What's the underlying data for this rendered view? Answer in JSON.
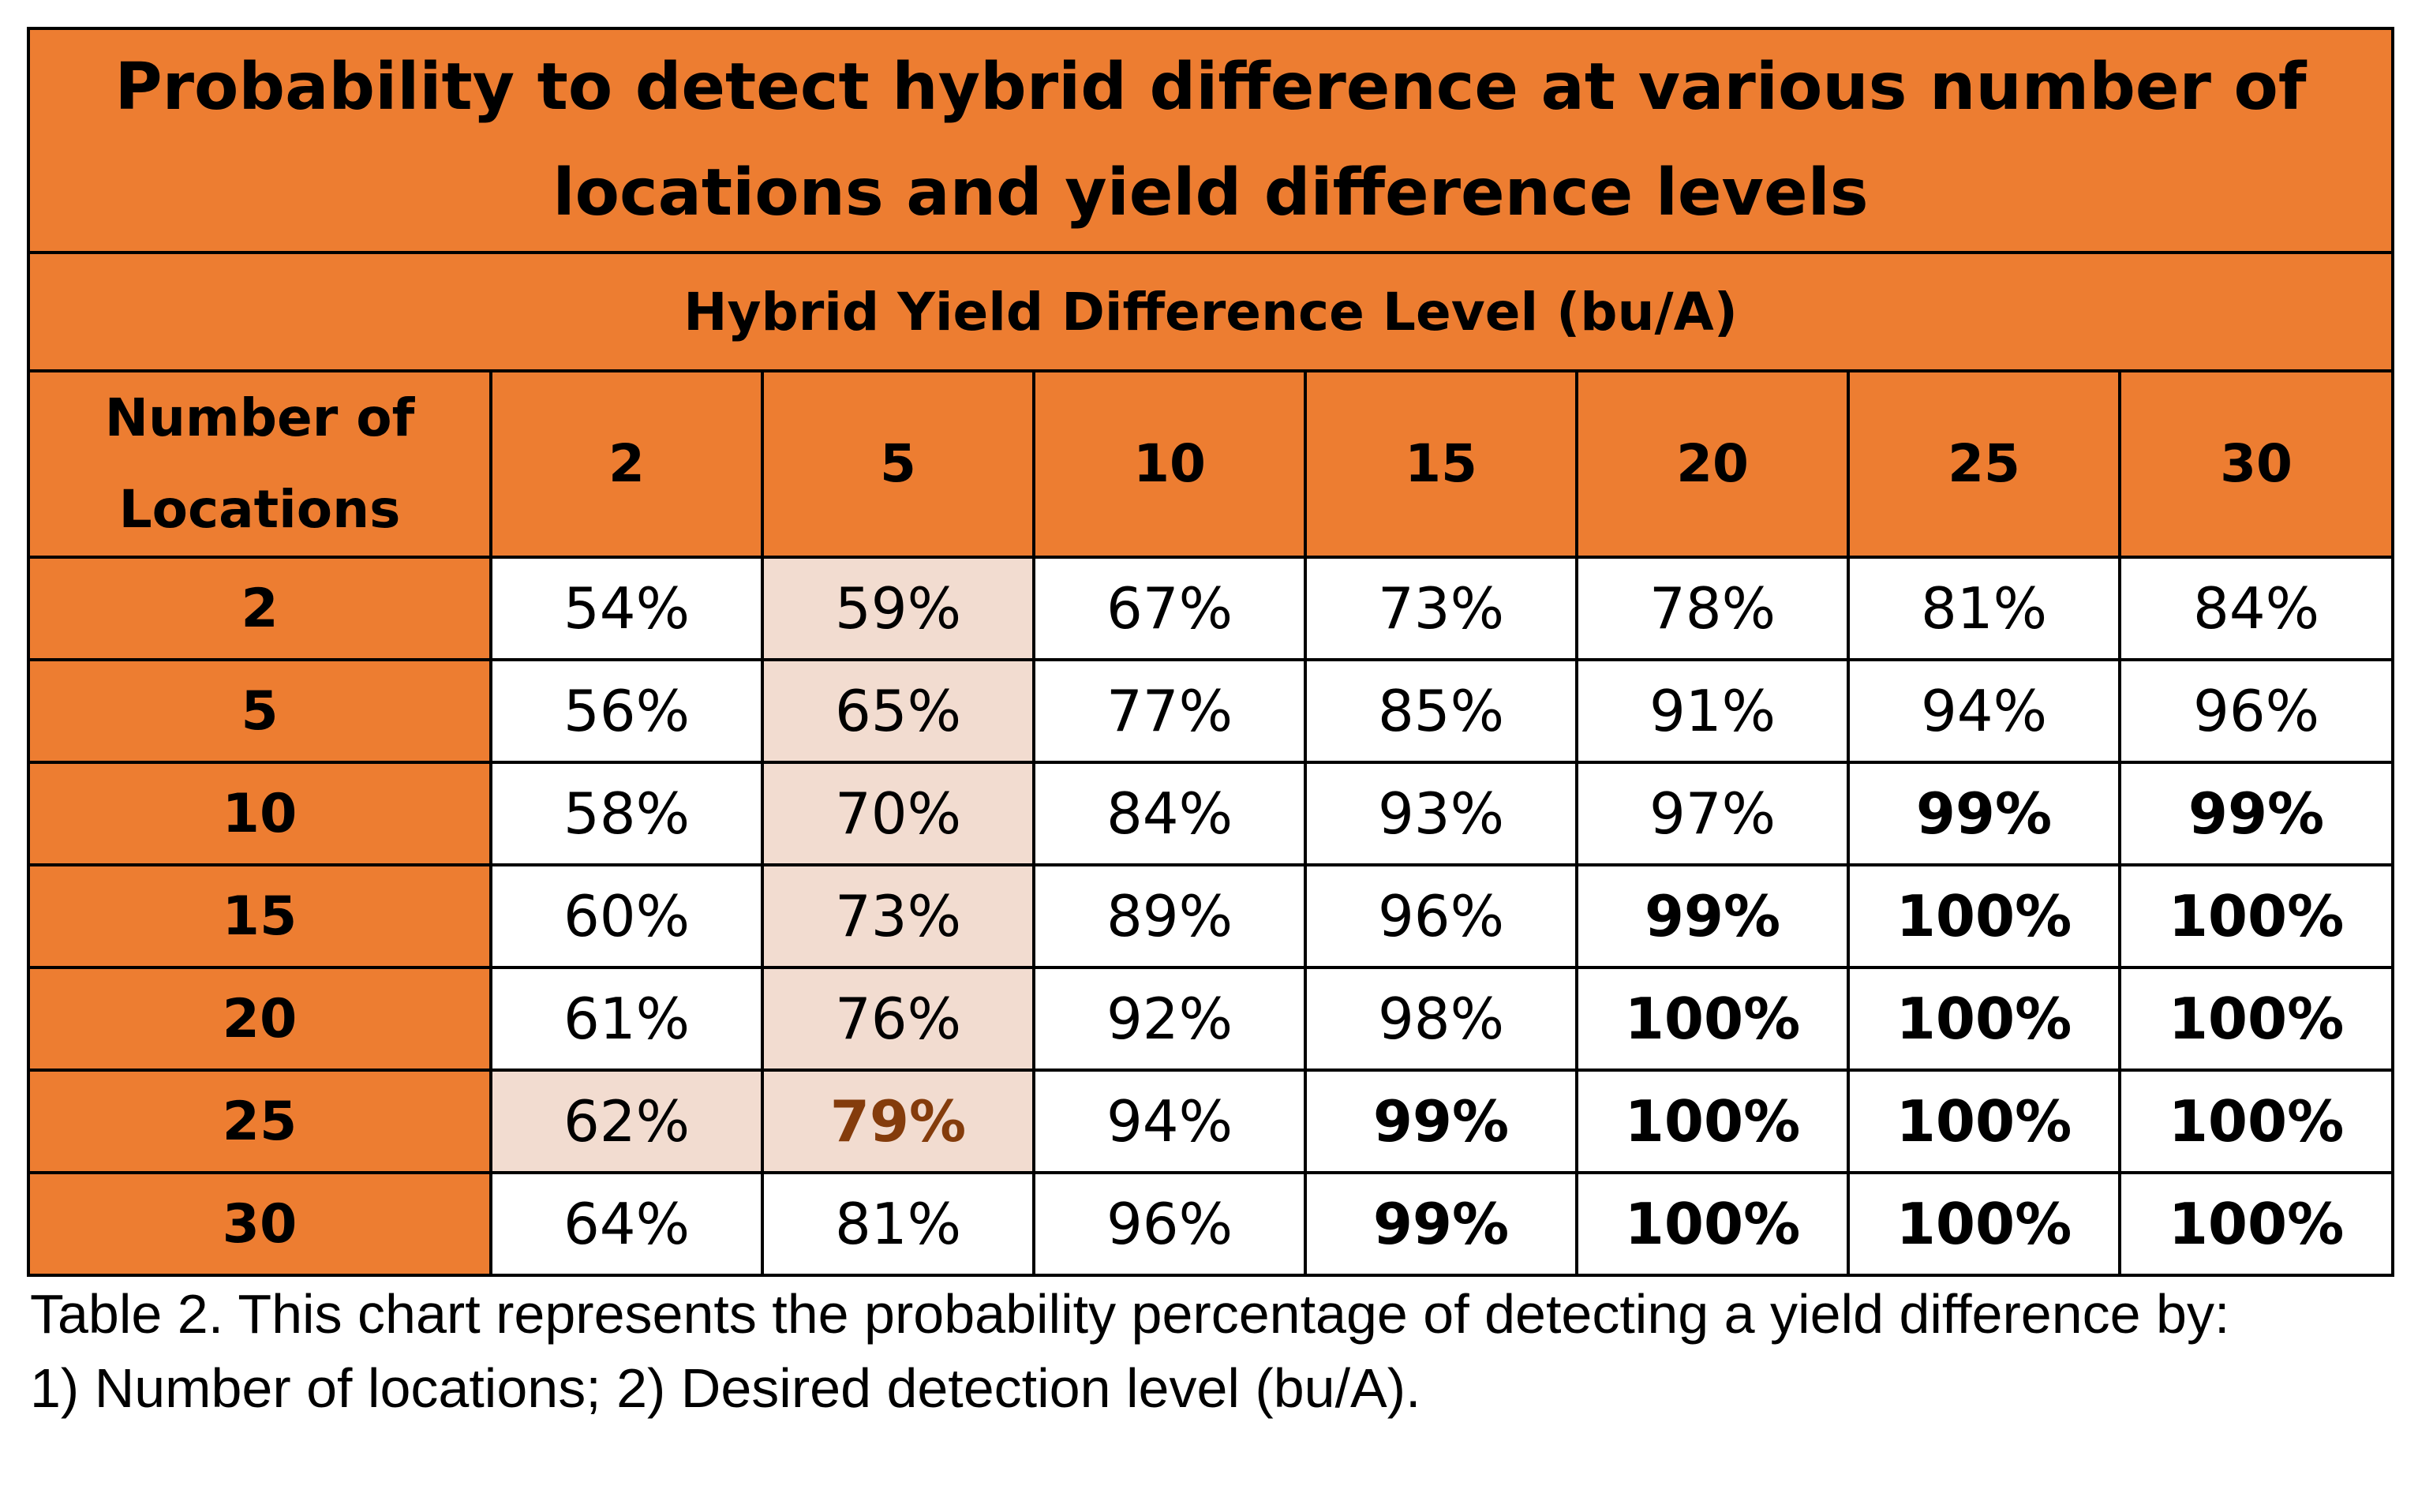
{
  "table": {
    "title": "Probability to detect hybrid difference at various number of locations and yield difference levels",
    "subtitle": "Hybrid Yield Difference Level (bu/A)",
    "row_header": "Number of Locations",
    "columns": [
      "2",
      "5",
      "10",
      "15",
      "20",
      "25",
      "30"
    ],
    "rows": [
      {
        "label": "2",
        "values": [
          "54%",
          "59%",
          "67%",
          "73%",
          "78%",
          "81%",
          "84%"
        ]
      },
      {
        "label": "5",
        "values": [
          "56%",
          "65%",
          "77%",
          "85%",
          "91%",
          "94%",
          "96%"
        ]
      },
      {
        "label": "10",
        "values": [
          "58%",
          "70%",
          "84%",
          "93%",
          "97%",
          "99%",
          "99%"
        ]
      },
      {
        "label": "15",
        "values": [
          "60%",
          "73%",
          "89%",
          "96%",
          "99%",
          "100%",
          "100%"
        ]
      },
      {
        "label": "20",
        "values": [
          "61%",
          "76%",
          "92%",
          "98%",
          "100%",
          "100%",
          "100%"
        ]
      },
      {
        "label": "25",
        "values": [
          "62%",
          "79%",
          "94%",
          "99%",
          "100%",
          "100%",
          "100%"
        ]
      },
      {
        "label": "30",
        "values": [
          "64%",
          "81%",
          "96%",
          "99%",
          "100%",
          "100%",
          "100%"
        ]
      }
    ]
  },
  "caption_lines": [
    "Table 2. This chart represents the probability percentage of detecting a yield difference by:",
    "1) Number of locations; 2) Desired detection level (bu/A)."
  ],
  "colors": {
    "header_fill": "#ED7D31",
    "highlight_fill": "#F2DCD0",
    "accent_text": "#843C0C"
  }
}
